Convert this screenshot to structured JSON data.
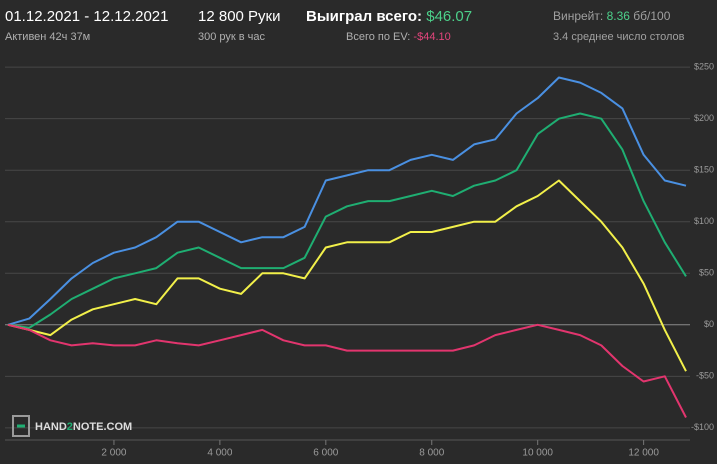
{
  "header": {
    "period": "01.12.2021 - 12.12.2021",
    "active": "Активен 42ч 37м",
    "hands": "12 800 Руки",
    "rate": "300 рук в час",
    "won_label": "Выиграл всего:",
    "won_value": "$46.07",
    "ev_label": "Всего по EV:",
    "ev_value": "-$44.10",
    "winrate_label": "Винрейт:",
    "winrate_value": "8.36",
    "winrate_unit": "бб/100",
    "tables": "3.4 среднее число столов"
  },
  "logo": {
    "parts": [
      "HAND",
      "2",
      "NOTE.COM"
    ]
  },
  "chart_data": {
    "type": "line",
    "x": [
      0,
      400,
      800,
      1200,
      1600,
      2000,
      2400,
      2800,
      3200,
      3600,
      4000,
      4400,
      4800,
      5200,
      5600,
      6000,
      6400,
      6800,
      7200,
      7600,
      8000,
      8400,
      8800,
      9200,
      9600,
      10000,
      10400,
      10800,
      11200,
      11600,
      12000,
      12400,
      12800
    ],
    "series": [
      {
        "color": "#4a90e2",
        "values": [
          0,
          6,
          25,
          45,
          60,
          70,
          75,
          85,
          100,
          100,
          90,
          80,
          85,
          85,
          95,
          140,
          145,
          150,
          150,
          160,
          165,
          160,
          175,
          180,
          205,
          220,
          240,
          235,
          225,
          210,
          165,
          140,
          135
        ]
      },
      {
        "color": "#1fae72",
        "values": [
          0,
          -3,
          10,
          25,
          35,
          45,
          50,
          55,
          70,
          75,
          65,
          55,
          55,
          55,
          65,
          105,
          115,
          120,
          120,
          125,
          130,
          125,
          135,
          140,
          150,
          185,
          200,
          205,
          200,
          170,
          120,
          80,
          47
        ]
      },
      {
        "color": "#f2f04a",
        "values": [
          0,
          -5,
          -10,
          5,
          15,
          20,
          25,
          20,
          45,
          45,
          35,
          30,
          50,
          50,
          45,
          75,
          80,
          80,
          80,
          90,
          90,
          95,
          100,
          100,
          115,
          125,
          140,
          120,
          100,
          75,
          40,
          -5,
          -45
        ]
      },
      {
        "color": "#e2356e",
        "values": [
          0,
          -5,
          -15,
          -20,
          -18,
          -20,
          -20,
          -15,
          -18,
          -20,
          -15,
          -10,
          -5,
          -15,
          -20,
          -20,
          -25,
          -25,
          -25,
          -25,
          -25,
          -25,
          -20,
          -10,
          -5,
          0,
          -5,
          -10,
          -20,
          -40,
          -55,
          -50,
          -90
        ]
      }
    ],
    "xlim": [
      0,
      12800
    ],
    "ylim": [
      -105,
      255
    ],
    "xticks": [
      {
        "value": 2000,
        "label": "2 000"
      },
      {
        "value": 4000,
        "label": "4 000"
      },
      {
        "value": 6000,
        "label": "6 000"
      },
      {
        "value": 8000,
        "label": "8 000"
      },
      {
        "value": 10000,
        "label": "10 000"
      },
      {
        "value": 12000,
        "label": "12 000"
      }
    ],
    "yticks": [
      {
        "value": 250,
        "label": "$250"
      },
      {
        "value": 200,
        "label": "$200"
      },
      {
        "value": 150,
        "label": "$150"
      },
      {
        "value": 100,
        "label": "$100"
      },
      {
        "value": 50,
        "label": "$50"
      },
      {
        "value": 0,
        "label": "$0"
      },
      {
        "value": -50,
        "label": "-$50"
      },
      {
        "value": -100,
        "label": "-$100"
      }
    ],
    "grid": true
  }
}
